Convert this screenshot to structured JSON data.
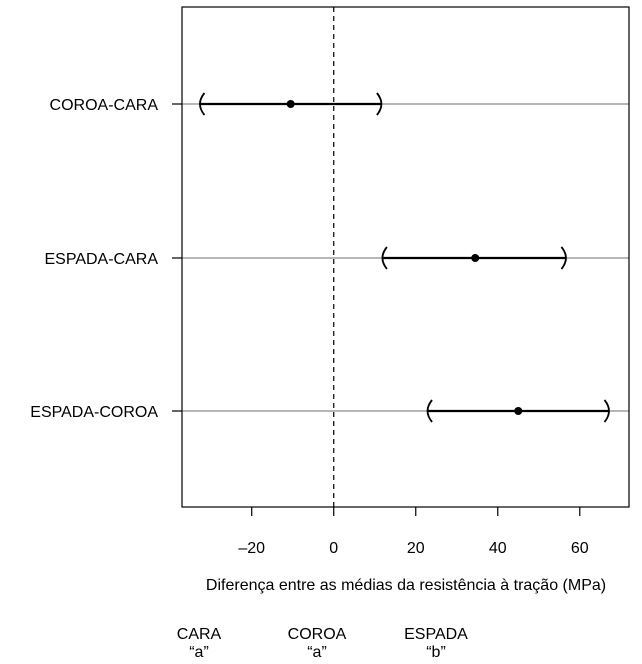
{
  "chart_data": {
    "type": "interval",
    "xlabel": "Diferença entre as médias da resistência à tração (MPa)",
    "xlim": [
      -37,
      72
    ],
    "xticks": [
      -20,
      0,
      20,
      40,
      60
    ],
    "xtick_labels": [
      "–20",
      "0",
      "20",
      "40",
      "60"
    ],
    "reference_line": 0,
    "comparisons": [
      {
        "label": "COROA-CARA",
        "estimate": -10.5,
        "lower": -32.5,
        "upper": 11.5
      },
      {
        "label": "ESPADA-CARA",
        "estimate": 34.5,
        "lower": 12.0,
        "upper": 56.5
      },
      {
        "label": "ESPADA-COROA",
        "estimate": 45.0,
        "lower": 23.0,
        "upper": 67.0
      }
    ]
  },
  "groups": [
    {
      "name": "CARA",
      "letter": "“a”"
    },
    {
      "name": "COROA",
      "letter": "“a”"
    },
    {
      "name": "ESPADA",
      "letter": "“b”"
    }
  ]
}
